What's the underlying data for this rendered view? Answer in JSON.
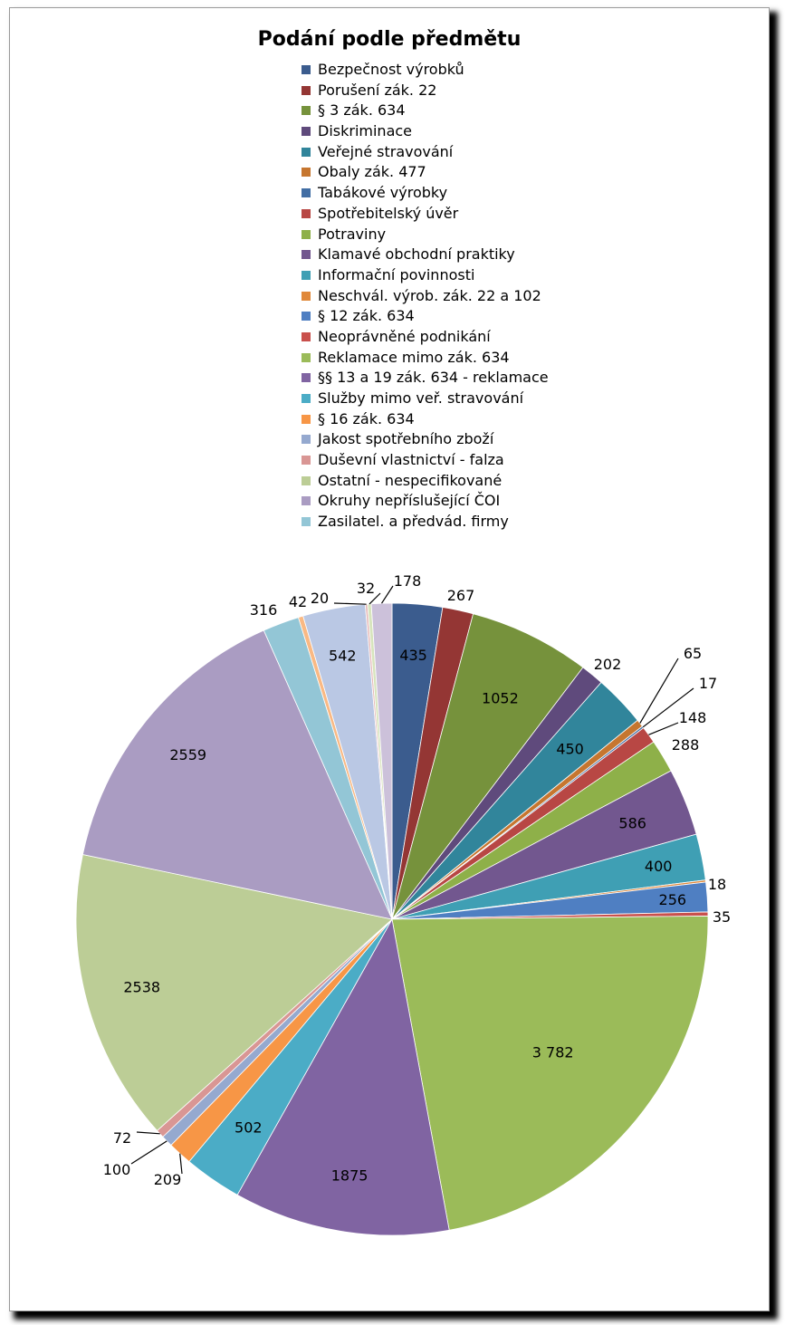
{
  "chart_data": {
    "type": "pie",
    "title": "Podání podle předmětu",
    "legend_position": "top",
    "start_angle_deg": 0,
    "direction": "clockwise",
    "slices": [
      {
        "label": "Bezpečnost výrobků",
        "value": 435,
        "value_label": "435",
        "color": "#3b5c8e"
      },
      {
        "label": "Porušení zák. 22",
        "value": 267,
        "value_label": "267",
        "color": "#943634"
      },
      {
        "label": "§ 3 zák. 634",
        "value": 1052,
        "value_label": "1052",
        "color": "#76923c"
      },
      {
        "label": "Diskriminace",
        "value": 202,
        "value_label": "202",
        "color": "#5f4a7c"
      },
      {
        "label": "Veřejné stravování",
        "value": 450,
        "value_label": "450",
        "color": "#31859b"
      },
      {
        "label": "Obaly zák. 477",
        "value": 65,
        "value_label": "65",
        "color": "#c6762f"
      },
      {
        "label": "Tabákové výrobky",
        "value": 17,
        "value_label": "17",
        "color": "#426ea4"
      },
      {
        "label": "Spotřebitelský úvěr",
        "value": 148,
        "value_label": "148",
        "color": "#b84744"
      },
      {
        "label": "Potraviny",
        "value": 288,
        "value_label": "288",
        "color": "#8eb049"
      },
      {
        "label": "Klamavé obchodní praktiky",
        "value": 586,
        "value_label": "586",
        "color": "#72578f"
      },
      {
        "label": "Informační povinnosti",
        "value": 400,
        "value_label": "400",
        "color": "#3f9fb4"
      },
      {
        "label": "Neschvál. výrob. zák. 22 a 102",
        "value": 18,
        "value_label": "18",
        "color": "#e0883a"
      },
      {
        "label": "§ 12 zák. 634",
        "value": 256,
        "value_label": "256",
        "color": "#4f7fc2"
      },
      {
        "label": "Neoprávněné podnikání",
        "value": 35,
        "value_label": "35",
        "color": "#c9504c"
      },
      {
        "label": "Reklamace mimo zák. 634",
        "value": 3782,
        "value_label": "3 782",
        "color": "#9bbb59"
      },
      {
        "label": "§§ 13 a 19 zák. 634 - reklamace",
        "value": 1875,
        "value_label": "1875",
        "color": "#8064a2"
      },
      {
        "label": "Služby mimo veř. stravování",
        "value": 502,
        "value_label": "502",
        "color": "#4bacc6"
      },
      {
        "label": "§ 16 zák. 634",
        "value": 209,
        "value_label": "209",
        "color": "#f79646"
      },
      {
        "label": "Jakost spotřebního zboží",
        "value": 100,
        "value_label": "100",
        "color": "#95a9cf"
      },
      {
        "label": "Duševní vlastnictví - falza",
        "value": 72,
        "value_label": "72",
        "color": "#d99694"
      },
      {
        "label": "Ostatní - nespecifikované",
        "value": 2538,
        "value_label": "2538",
        "color": "#bccd96"
      },
      {
        "label": "Okruhy nepříslušející ČOI",
        "value": 2559,
        "value_label": "2559",
        "color": "#aa9cc2"
      },
      {
        "label": "Zasilatel. a předvád. firmy",
        "value": 316,
        "value_label": "316",
        "color": "#93c6d6"
      },
      {
        "label": "",
        "value": 42,
        "value_label": "42",
        "color": "#f9b984"
      },
      {
        "label": "",
        "value": 542,
        "value_label": "542",
        "color": "#bac8e4"
      },
      {
        "label": "",
        "value": 20,
        "value_label": "20",
        "color": "#e6b9b8"
      },
      {
        "label": "",
        "value": 32,
        "value_label": "32",
        "color": "#d7e4bd"
      },
      {
        "label": "",
        "value": 178,
        "value_label": "178",
        "color": "#ccc1da"
      }
    ]
  }
}
